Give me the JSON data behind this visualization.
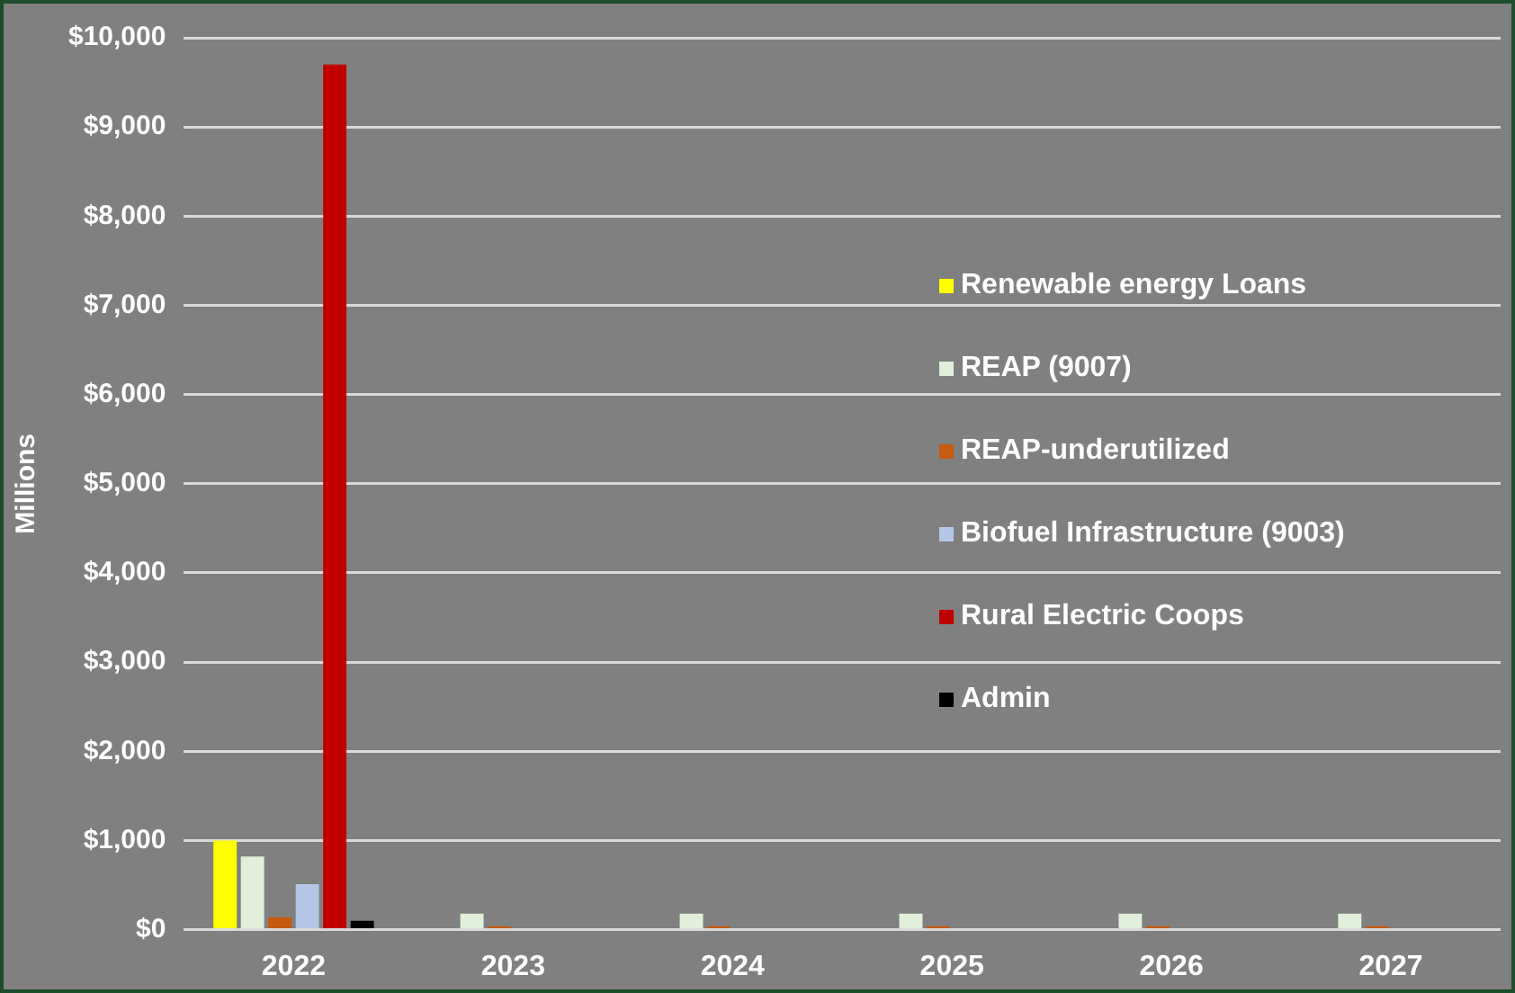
{
  "chart_data": {
    "type": "bar",
    "ylabel": "Millions",
    "categories": [
      "2022",
      "2023",
      "2024",
      "2025",
      "2026",
      "2027"
    ],
    "series": [
      {
        "name": "Renewable energy Loans",
        "color": "#ffff00",
        "values": [
          1000,
          null,
          null,
          null,
          null,
          null
        ]
      },
      {
        "name": "REAP (9007)",
        "color": "#e2efda",
        "values": [
          820,
          180,
          180,
          180,
          180,
          180
        ]
      },
      {
        "name": "REAP-underutilized",
        "color": "#c55a11",
        "values": [
          140,
          40,
          40,
          40,
          40,
          40
        ]
      },
      {
        "name": "Biofuel Infrastructure (9003)",
        "color": "#b4c7e7",
        "values": [
          510,
          null,
          null,
          null,
          null,
          null
        ]
      },
      {
        "name": "Rural Electric Coops",
        "color": "#c00000",
        "values": [
          9700,
          null,
          null,
          null,
          null,
          null
        ]
      },
      {
        "name": "Admin",
        "color": "#000000",
        "values": [
          100,
          null,
          null,
          null,
          null,
          null
        ]
      }
    ],
    "ylim": [
      0,
      10000
    ],
    "yticks": [
      {
        "value": 0,
        "label": "$0"
      },
      {
        "value": 1000,
        "label": "$1,000"
      },
      {
        "value": 2000,
        "label": "$2,000"
      },
      {
        "value": 3000,
        "label": "$3,000"
      },
      {
        "value": 4000,
        "label": "$4,000"
      },
      {
        "value": 5000,
        "label": "$5,000"
      },
      {
        "value": 6000,
        "label": "$6,000"
      },
      {
        "value": 7000,
        "label": "$7,000"
      },
      {
        "value": 8000,
        "label": "$8,000"
      },
      {
        "value": 9000,
        "label": "$9,000"
      },
      {
        "value": 10000,
        "label": "$10,000"
      }
    ],
    "grid": "y",
    "legend": "right"
  }
}
